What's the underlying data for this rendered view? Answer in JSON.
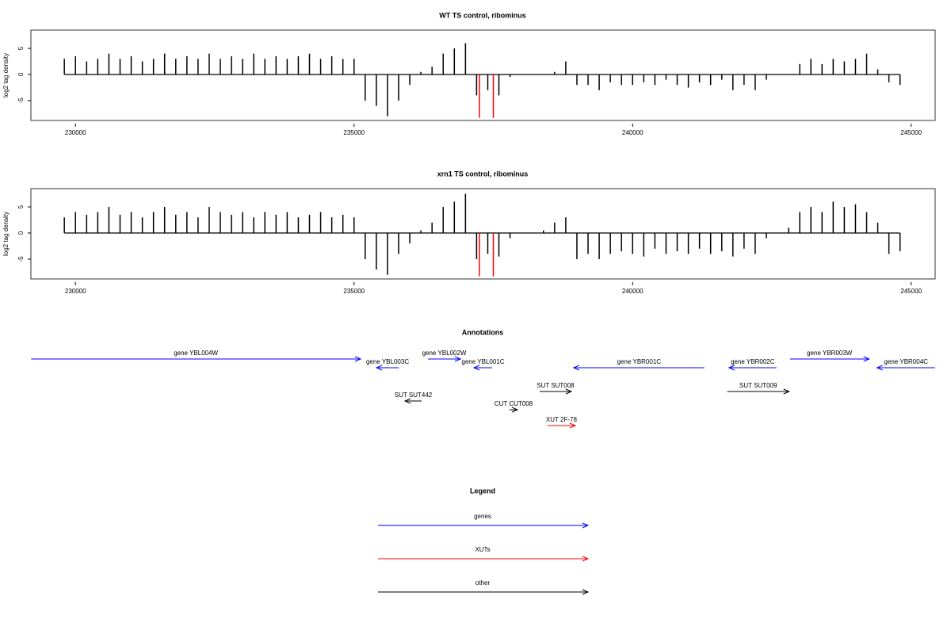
{
  "chart_data": [
    {
      "type": "bar",
      "title": "WT TS control, ribominus",
      "y_label": "log2 tag density",
      "xlim": [
        229200,
        245430
      ],
      "ylim": [
        -8.8,
        8.5
      ],
      "xticks": [
        230000,
        235000,
        240000,
        245000
      ],
      "yticks": [
        -5,
        0,
        5
      ],
      "series": [
        {
          "color": "#000000",
          "x": [
            229800,
            230000,
            230200,
            230400,
            230600,
            230800,
            231000,
            231200,
            231400,
            231600,
            231800,
            232000,
            232200,
            232400,
            232600,
            232800,
            233000,
            233200,
            233400,
            233600,
            233800,
            234000,
            234200,
            234400,
            234600,
            234800,
            235000,
            235200,
            235400,
            235600,
            235800,
            236000,
            236200,
            236400,
            236600,
            236800,
            237000,
            237200,
            237400,
            237600,
            237800,
            238000,
            238200,
            238400,
            238600,
            238800,
            239000,
            239200,
            239400,
            239600,
            239800,
            240000,
            240200,
            240400,
            240600,
            240800,
            241000,
            241200,
            241400,
            241600,
            241800,
            242000,
            242200,
            242400,
            242600,
            242800,
            243000,
            243200,
            243400,
            243600,
            243800,
            244000,
            244200,
            244400,
            244600,
            244800
          ],
          "values": [
            3,
            3.5,
            2.5,
            3,
            4,
            3,
            3.5,
            2.5,
            3,
            4,
            3,
            3.5,
            3,
            4,
            3,
            3.5,
            3,
            4,
            3,
            3.5,
            3,
            3.5,
            4,
            3,
            3.5,
            3,
            3,
            -5,
            -6,
            -8,
            -5,
            -2,
            0.5,
            1.5,
            4,
            5,
            6,
            -4,
            -3,
            -4,
            -0.5,
            0,
            0,
            0,
            0.5,
            2.5,
            -2,
            -2,
            -3,
            -1.5,
            -2,
            -2,
            -1.5,
            -2,
            -1,
            -2,
            -2.5,
            -1.5,
            -2,
            -1,
            -3,
            -2,
            -3,
            -1,
            0,
            0,
            2,
            3,
            2,
            3,
            2.5,
            3,
            4,
            1,
            -1.5,
            -2
          ]
        },
        {
          "color": "#ff0000",
          "x": [
            237250,
            237500
          ],
          "values": [
            -8.3,
            -8.3
          ]
        }
      ]
    },
    {
      "type": "bar",
      "title": "xrn1 TS control, ribominus",
      "y_label": "log2 tag density",
      "xlim": [
        229200,
        245430
      ],
      "ylim": [
        -8.8,
        8.5
      ],
      "xticks": [
        230000,
        235000,
        240000,
        245000
      ],
      "yticks": [
        -5,
        0,
        5
      ],
      "series": [
        {
          "color": "#000000",
          "x": [
            229800,
            230000,
            230200,
            230400,
            230600,
            230800,
            231000,
            231200,
            231400,
            231600,
            231800,
            232000,
            232200,
            232400,
            232600,
            232800,
            233000,
            233200,
            233400,
            233600,
            233800,
            234000,
            234200,
            234400,
            234600,
            234800,
            235000,
            235200,
            235400,
            235600,
            235800,
            236000,
            236200,
            236400,
            236600,
            236800,
            237000,
            237200,
            237400,
            237600,
            237800,
            238000,
            238200,
            238400,
            238600,
            238800,
            239000,
            239200,
            239400,
            239600,
            239800,
            240000,
            240200,
            240400,
            240600,
            240800,
            241000,
            241200,
            241400,
            241600,
            241800,
            242000,
            242200,
            242400,
            242600,
            242800,
            243000,
            243200,
            243400,
            243600,
            243800,
            244000,
            244200,
            244400,
            244600,
            244800
          ],
          "values": [
            3,
            4,
            3.5,
            4,
            5,
            3.5,
            4,
            3,
            4,
            5,
            3.5,
            4,
            3,
            5,
            4,
            3.5,
            4,
            3,
            4,
            3.5,
            4,
            3,
            3.5,
            4,
            3,
            3.5,
            3,
            -5,
            -7,
            -8,
            -4,
            -2,
            0.5,
            2,
            5,
            6,
            7.5,
            -5,
            -4,
            -4.5,
            -1,
            0,
            0,
            0.5,
            2,
            3,
            -5,
            -4,
            -5,
            -4,
            -3.5,
            -4,
            -4.5,
            -3,
            -4,
            -3.5,
            -4,
            -3,
            -4,
            -3.5,
            -4.5,
            -3,
            -4,
            -1,
            0,
            1,
            4,
            5,
            4,
            6,
            5,
            5.5,
            4,
            2,
            -4,
            -3.5
          ]
        },
        {
          "color": "#ff0000",
          "x": [
            237250,
            237500
          ],
          "values": [
            -8.3,
            -8.3
          ]
        }
      ]
    }
  ],
  "annotations": {
    "title": "Annotations",
    "xlim": [
      229200,
      245430
    ],
    "features": [
      {
        "label": "gene YBL004W",
        "start": 229204,
        "end": 235118,
        "strand": "+",
        "color": "#0000ff"
      },
      {
        "label": "gene YBL003C",
        "start": 235402,
        "end": 235801,
        "strand": "-",
        "color": "#0000ff"
      },
      {
        "label": "gene YBL002W",
        "start": 236327,
        "end": 236910,
        "strand": "+",
        "color": "#0000ff"
      },
      {
        "label": "gene YBL001C",
        "start": 237151,
        "end": 237478,
        "strand": "-",
        "color": "#0000ff"
      },
      {
        "label": "gene YBR001C",
        "start": 238942,
        "end": 241288,
        "strand": "-",
        "color": "#0000ff"
      },
      {
        "label": "gene YBR002C",
        "start": 241729,
        "end": 242582,
        "strand": "-",
        "color": "#0000ff"
      },
      {
        "label": "gene YBR003W",
        "start": 242824,
        "end": 244245,
        "strand": "+",
        "color": "#0000ff"
      },
      {
        "label": "gene YBR004C",
        "start": 244387,
        "end": 245427,
        "strand": "-",
        "color": "#0000ff"
      },
      {
        "label": "SUT SUT442",
        "start": 235914,
        "end": 236213,
        "strand": "-",
        "color": "#000000"
      },
      {
        "label": "CUT CUT008",
        "start": 237791,
        "end": 237933,
        "strand": "+",
        "color": "#000000"
      },
      {
        "label": "SUT SUT008",
        "start": 238331,
        "end": 238900,
        "strand": "+",
        "color": "#000000"
      },
      {
        "label": "SUT SUT009",
        "start": 241700,
        "end": 242809,
        "strand": "+",
        "color": "#000000"
      },
      {
        "label": "XUT 2F-78",
        "start": 238473,
        "end": 238971,
        "strand": "+",
        "color": "#ff0000"
      }
    ]
  },
  "legend": {
    "title": "Legend",
    "items": [
      {
        "label": "genes",
        "color": "#0000ff"
      },
      {
        "label": "XUTs",
        "color": "#ff0000"
      },
      {
        "label": "other",
        "color": "#000000"
      }
    ]
  }
}
